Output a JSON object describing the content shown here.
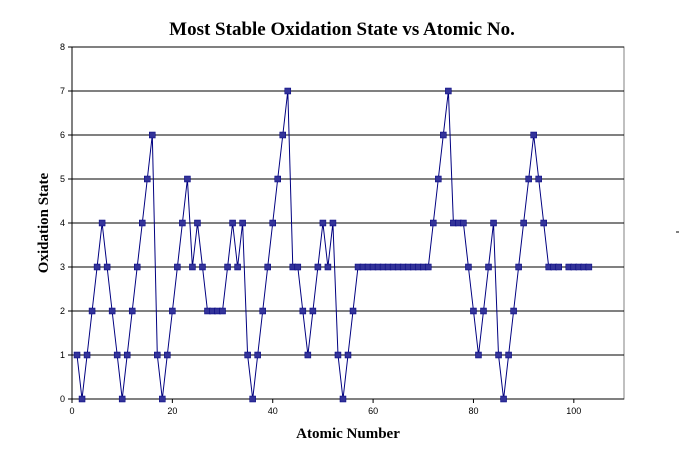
{
  "chart_data": {
    "type": "line",
    "title": "Most Stable Oxidation State vs Atomic No.",
    "xlabel": "Atomic Number",
    "ylabel": "Oxidation State",
    "xlim": [
      0,
      110
    ],
    "ylim": [
      0,
      8
    ],
    "xticks": [
      0,
      20,
      40,
      60,
      80,
      100
    ],
    "yticks": [
      0,
      1,
      2,
      3,
      4,
      5,
      6,
      7,
      8
    ],
    "grid": "horizontal",
    "legend": "none",
    "series_color": "#000080",
    "marker_color": "#333399",
    "x": [
      1,
      2,
      3,
      4,
      5,
      6,
      7,
      8,
      9,
      10,
      11,
      12,
      13,
      14,
      15,
      16,
      17,
      18,
      19,
      20,
      21,
      22,
      23,
      24,
      25,
      26,
      27,
      28,
      29,
      30,
      31,
      32,
      33,
      34,
      35,
      36,
      37,
      38,
      39,
      40,
      41,
      42,
      43,
      44,
      45,
      46,
      47,
      48,
      49,
      50,
      51,
      52,
      53,
      54,
      55,
      56,
      57,
      58,
      59,
      60,
      61,
      62,
      63,
      64,
      65,
      66,
      67,
      68,
      69,
      70,
      71,
      72,
      73,
      74,
      75,
      76,
      77,
      78,
      79,
      80,
      81,
      82,
      83,
      84,
      85,
      86,
      87,
      88,
      89,
      90,
      91,
      92,
      93,
      94,
      95,
      96,
      97,
      98,
      99,
      100,
      101,
      102,
      103
    ],
    "y": [
      1,
      0,
      1,
      2,
      3,
      4,
      3,
      2,
      1,
      0,
      1,
      2,
      3,
      4,
      5,
      6,
      1,
      0,
      1,
      2,
      3,
      4,
      5,
      3,
      4,
      3,
      2,
      2,
      2,
      2,
      3,
      4,
      3,
      4,
      1,
      0,
      1,
      2,
      3,
      4,
      5,
      6,
      7,
      3,
      3,
      2,
      1,
      2,
      3,
      4,
      3,
      4,
      1,
      0,
      1,
      2,
      3,
      3,
      3,
      3,
      3,
      3,
      3,
      3,
      3,
      3,
      3,
      3,
      3,
      3,
      3,
      4,
      5,
      6,
      7,
      4,
      4,
      4,
      3,
      2,
      1,
      2,
      3,
      4,
      1,
      0,
      1,
      2,
      3,
      4,
      5,
      6,
      5,
      4,
      3,
      3,
      3,
      null,
      3,
      3,
      3,
      3,
      3
    ]
  }
}
